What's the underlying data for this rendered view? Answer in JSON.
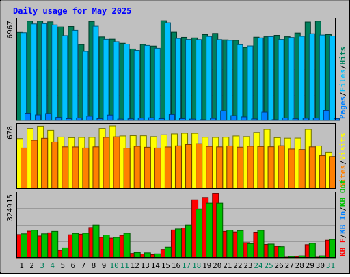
{
  "chart_data": {
    "title": "Daily usage for May 2025",
    "type": "bar",
    "days": [
      "1",
      "2",
      "3",
      "4",
      "5",
      "6",
      "7",
      "8",
      "9",
      "10",
      "11",
      "12",
      "13",
      "14",
      "15",
      "16",
      "17",
      "18",
      "19",
      "20",
      "21",
      "22",
      "23",
      "24",
      "25",
      "26",
      "27",
      "28",
      "29",
      "30",
      "31"
    ],
    "weekend_days": [
      "3",
      "4",
      "10",
      "11",
      "17",
      "18",
      "24",
      "25",
      "31"
    ],
    "weekend_label_color": "#00805c",
    "weekday_label_color": "#000000",
    "colors": {
      "background": "#c0c0c0",
      "frame": "#b0b0b0",
      "title": "#0000ff",
      "hits": "#00805c",
      "files": "#00c0ff",
      "pages": "#0080ff",
      "visits": "#ffff00",
      "sites": "#ff8000",
      "kb_in": "#00c000",
      "kb_out": "#ff0000"
    },
    "panels": [
      {
        "id": "hits_files_pages",
        "max_label": "6967",
        "ymax": 6967,
        "legend": [
          "Pages",
          "/",
          "Files",
          "/",
          "Hits"
        ],
        "series": [
          {
            "name": "Hits",
            "values": [
              6140,
              6930,
              6930,
              6880,
              6530,
              6560,
              5290,
              6910,
              5830,
              5670,
              5380,
              4990,
              5300,
              5190,
              6960,
              6150,
              5800,
              5760,
              5990,
              6070,
              5620,
              5590,
              5100,
              5810,
              5840,
              5940,
              5840,
              6100,
              6870,
              6930,
              5990
            ]
          },
          {
            "name": "Files",
            "values": [
              6120,
              6740,
              6760,
              6670,
              5920,
              6280,
              4820,
              6580,
              5660,
              5490,
              5320,
              4890,
              5230,
              5040,
              6820,
              5720,
              5650,
              5640,
              5860,
              5640,
              5590,
              5280,
              5200,
              5760,
              5850,
              5650,
              5790,
              5870,
              6050,
              5960,
              5890
            ]
          },
          {
            "name": "Pages",
            "values": [
              500,
              380,
              480,
              210,
              120,
              170,
              290,
              120,
              370,
              90,
              110,
              160,
              180,
              120,
              410,
              120,
              90,
              50,
              140,
              660,
              330,
              240,
              100,
              570,
              50,
              170,
              110,
              150,
              160,
              690,
              130
            ]
          }
        ]
      },
      {
        "id": "visits_sites",
        "max_label": "678",
        "ymax": 678,
        "legend": [
          "Sites",
          "/",
          "Visits"
        ],
        "series": [
          {
            "name": "Visits",
            "values": [
              540,
              651,
              675,
              631,
              557,
              550,
              553,
              554,
              651,
              678,
              568,
              571,
              570,
              561,
              580,
              590,
              597,
              596,
              555,
              553,
              555,
              568,
              561,
              606,
              641,
              550,
              544,
              545,
              641,
              461,
              395
            ]
          },
          {
            "name": "Sites",
            "values": [
              439,
              523,
              543,
              505,
              451,
              450,
              439,
              451,
              554,
              559,
              438,
              457,
              447,
              439,
              450,
              462,
              476,
              485,
              456,
              451,
              461,
              448,
              458,
              455,
              452,
              463,
              428,
              422,
              451,
              357,
              348
            ]
          }
        ]
      },
      {
        "id": "kb_in_out",
        "max_label": "324915",
        "ymax": 324915,
        "legend": [
          "KB F",
          "/",
          "KB In",
          "/",
          "KB Out"
        ],
        "series": [
          {
            "name": "KB Out",
            "values": [
              119000,
              136000,
              112000,
              128000,
              38000,
              118000,
              121000,
              154000,
              105000,
              101000,
              115000,
              22000,
              19000,
              16000,
              43000,
              142000,
              152000,
              296000,
              308000,
              330000,
              135000,
              132000,
              77000,
              131000,
              68000,
              59000,
              3000,
              7000,
              67000,
              1000,
              90000
            ]
          },
          {
            "name": "KB In",
            "values": [
              123000,
              141000,
              123000,
              135000,
              51000,
              125000,
              126000,
              167000,
              117000,
              105000,
              126000,
              27000,
              25000,
              20000,
              55000,
              147000,
              167000,
              249000,
              279000,
              279000,
              141000,
              139000,
              72000,
              140000,
              70000,
              57000,
              7000,
              10000,
              74000,
              10000,
              94000
            ]
          }
        ]
      }
    ],
    "grid": true
  }
}
